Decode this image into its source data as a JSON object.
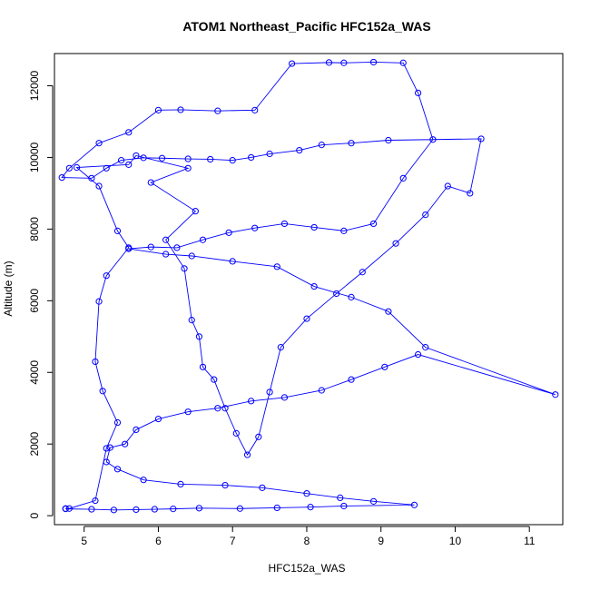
{
  "chart_data": {
    "type": "line",
    "title": "ATOM1 Northeast_Pacific HFC152a_WAS",
    "xlabel": "HFC152a_WAS",
    "ylabel": "Altitude (m)",
    "xlim": [
      4.6,
      11.45
    ],
    "ylim": [
      -250,
      12900
    ],
    "x_ticks": [
      5,
      6,
      7,
      8,
      9,
      10,
      11
    ],
    "y_ticks": [
      0,
      2000,
      4000,
      6000,
      8000,
      10000,
      12000
    ],
    "x_tick_labels": [
      "5",
      "6",
      "7",
      "8",
      "9",
      "10",
      "11"
    ],
    "y_tick_labels": [
      "0",
      "2000",
      "4000",
      "6000",
      "8000",
      "10000",
      "12000"
    ],
    "grid": false,
    "marker": "open-circle",
    "series": [
      {
        "color": "#0000ff",
        "x": [
          4.75,
          4.8,
          5.15,
          5.3,
          5.45,
          5.25,
          5.15,
          5.2,
          5.3,
          5.6,
          5.45,
          5.2,
          4.9,
          5.6,
          5.7,
          6.4,
          5.9,
          6.5,
          6.1,
          6.35,
          6.45,
          6.55,
          6.6,
          6.75,
          6.9,
          7.05,
          7.2,
          7.35,
          7.5,
          7.65,
          8.0,
          8.4,
          8.75,
          9.2,
          9.6,
          9.9,
          10.2,
          10.35,
          9.1,
          8.6,
          8.2,
          7.9,
          7.5,
          7.25,
          7.0,
          6.7,
          6.4,
          6.05,
          5.8,
          5.5,
          5.3,
          5.1,
          4.7,
          4.8,
          5.2,
          5.6,
          6.0,
          6.3,
          6.8,
          7.3,
          7.8,
          8.3,
          8.5,
          8.9,
          9.3,
          9.5,
          9.7,
          9.3,
          8.9,
          8.5,
          8.1,
          7.7,
          7.3,
          6.95,
          6.6,
          6.25,
          5.9,
          5.6,
          6.1,
          6.45,
          7.0,
          7.6,
          8.1,
          8.6,
          9.1,
          9.6,
          11.35,
          9.5,
          9.05,
          8.6,
          8.2,
          7.7,
          7.25,
          6.8,
          6.4,
          6.0,
          5.7,
          5.55,
          5.35,
          5.3,
          5.45,
          5.8,
          6.3,
          6.9,
          7.4,
          8.0,
          8.45,
          8.9,
          9.45,
          8.5,
          8.05,
          7.6,
          7.1,
          6.55,
          6.2,
          5.95,
          5.7,
          5.4,
          5.1,
          4.75
        ],
        "y": [
          200,
          200,
          420,
          1880,
          2600,
          3480,
          4300,
          5980,
          6700,
          7480,
          7950,
          9200,
          9720,
          9800,
          10050,
          9700,
          9300,
          8500,
          7700,
          6900,
          5460,
          5000,
          4150,
          3800,
          3000,
          2300,
          1700,
          2200,
          3450,
          4700,
          5500,
          6200,
          6800,
          7600,
          8400,
          9200,
          9000,
          10520,
          10480,
          10400,
          10350,
          10200,
          10100,
          10000,
          9920,
          9950,
          9960,
          9980,
          9990,
          9920,
          9700,
          9420,
          9440,
          9700,
          10400,
          10700,
          11320,
          11330,
          11300,
          11320,
          12620,
          12650,
          12640,
          12660,
          12640,
          11800,
          10500,
          9420,
          8150,
          7950,
          8050,
          8150,
          8030,
          7900,
          7700,
          7480,
          7500,
          7450,
          7300,
          7250,
          7100,
          6950,
          6400,
          6100,
          5700,
          4700,
          3380,
          4500,
          4150,
          3800,
          3500,
          3300,
          3200,
          3000,
          2900,
          2700,
          2400,
          2000,
          1900,
          1500,
          1300,
          1000,
          880,
          850,
          780,
          620,
          500,
          400,
          300,
          270,
          240,
          220,
          200,
          210,
          190,
          180,
          170,
          160,
          180,
          190
        ]
      }
    ]
  }
}
